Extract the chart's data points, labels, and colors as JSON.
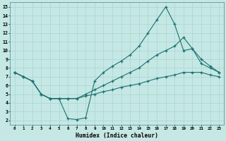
{
  "xlabel": "Humidex (Indice chaleur)",
  "bg_color": "#c5e8e5",
  "grid_color": "#a8d4d0",
  "line_color": "#1e7070",
  "spine_color": "#5a9898",
  "xlim": [
    -0.5,
    23.5
  ],
  "ylim": [
    1.5,
    15.5
  ],
  "xticks": [
    0,
    1,
    2,
    3,
    4,
    5,
    6,
    7,
    8,
    9,
    10,
    11,
    12,
    13,
    14,
    15,
    16,
    17,
    18,
    19,
    20,
    21,
    22,
    23
  ],
  "yticks": [
    2,
    3,
    4,
    5,
    6,
    7,
    8,
    9,
    10,
    11,
    12,
    13,
    14,
    15
  ],
  "line1_x": [
    0,
    1,
    2,
    3,
    4,
    5,
    6,
    7,
    8,
    9,
    10,
    11,
    12,
    13,
    14,
    15,
    16,
    17,
    18,
    19,
    20,
    21,
    22,
    23
  ],
  "line1_y": [
    7.5,
    7.0,
    6.5,
    5.0,
    4.5,
    4.5,
    2.2,
    2.1,
    2.3,
    6.5,
    7.5,
    8.2,
    8.8,
    9.5,
    10.5,
    12.0,
    13.5,
    15.0,
    13.0,
    10.0,
    10.2,
    9.0,
    8.2,
    7.5
  ],
  "line2_x": [
    0,
    1,
    2,
    3,
    4,
    5,
    6,
    7,
    8,
    9,
    10,
    11,
    12,
    13,
    14,
    15,
    16,
    17,
    18,
    19,
    20,
    21,
    22,
    23
  ],
  "line2_y": [
    7.5,
    7.0,
    6.5,
    5.0,
    4.5,
    4.5,
    4.5,
    4.5,
    5.0,
    5.5,
    6.0,
    6.5,
    7.0,
    7.5,
    8.0,
    8.8,
    9.5,
    10.0,
    10.5,
    11.5,
    10.2,
    8.5,
    8.0,
    7.5
  ],
  "line3_x": [
    0,
    1,
    2,
    3,
    4,
    5,
    6,
    7,
    8,
    9,
    10,
    11,
    12,
    13,
    14,
    15,
    16,
    17,
    18,
    19,
    20,
    21,
    22,
    23
  ],
  "line3_y": [
    7.5,
    7.0,
    6.5,
    5.0,
    4.5,
    4.5,
    4.5,
    4.5,
    4.8,
    5.0,
    5.3,
    5.5,
    5.8,
    6.0,
    6.2,
    6.5,
    6.8,
    7.0,
    7.2,
    7.5,
    7.5,
    7.5,
    7.2,
    7.0
  ]
}
